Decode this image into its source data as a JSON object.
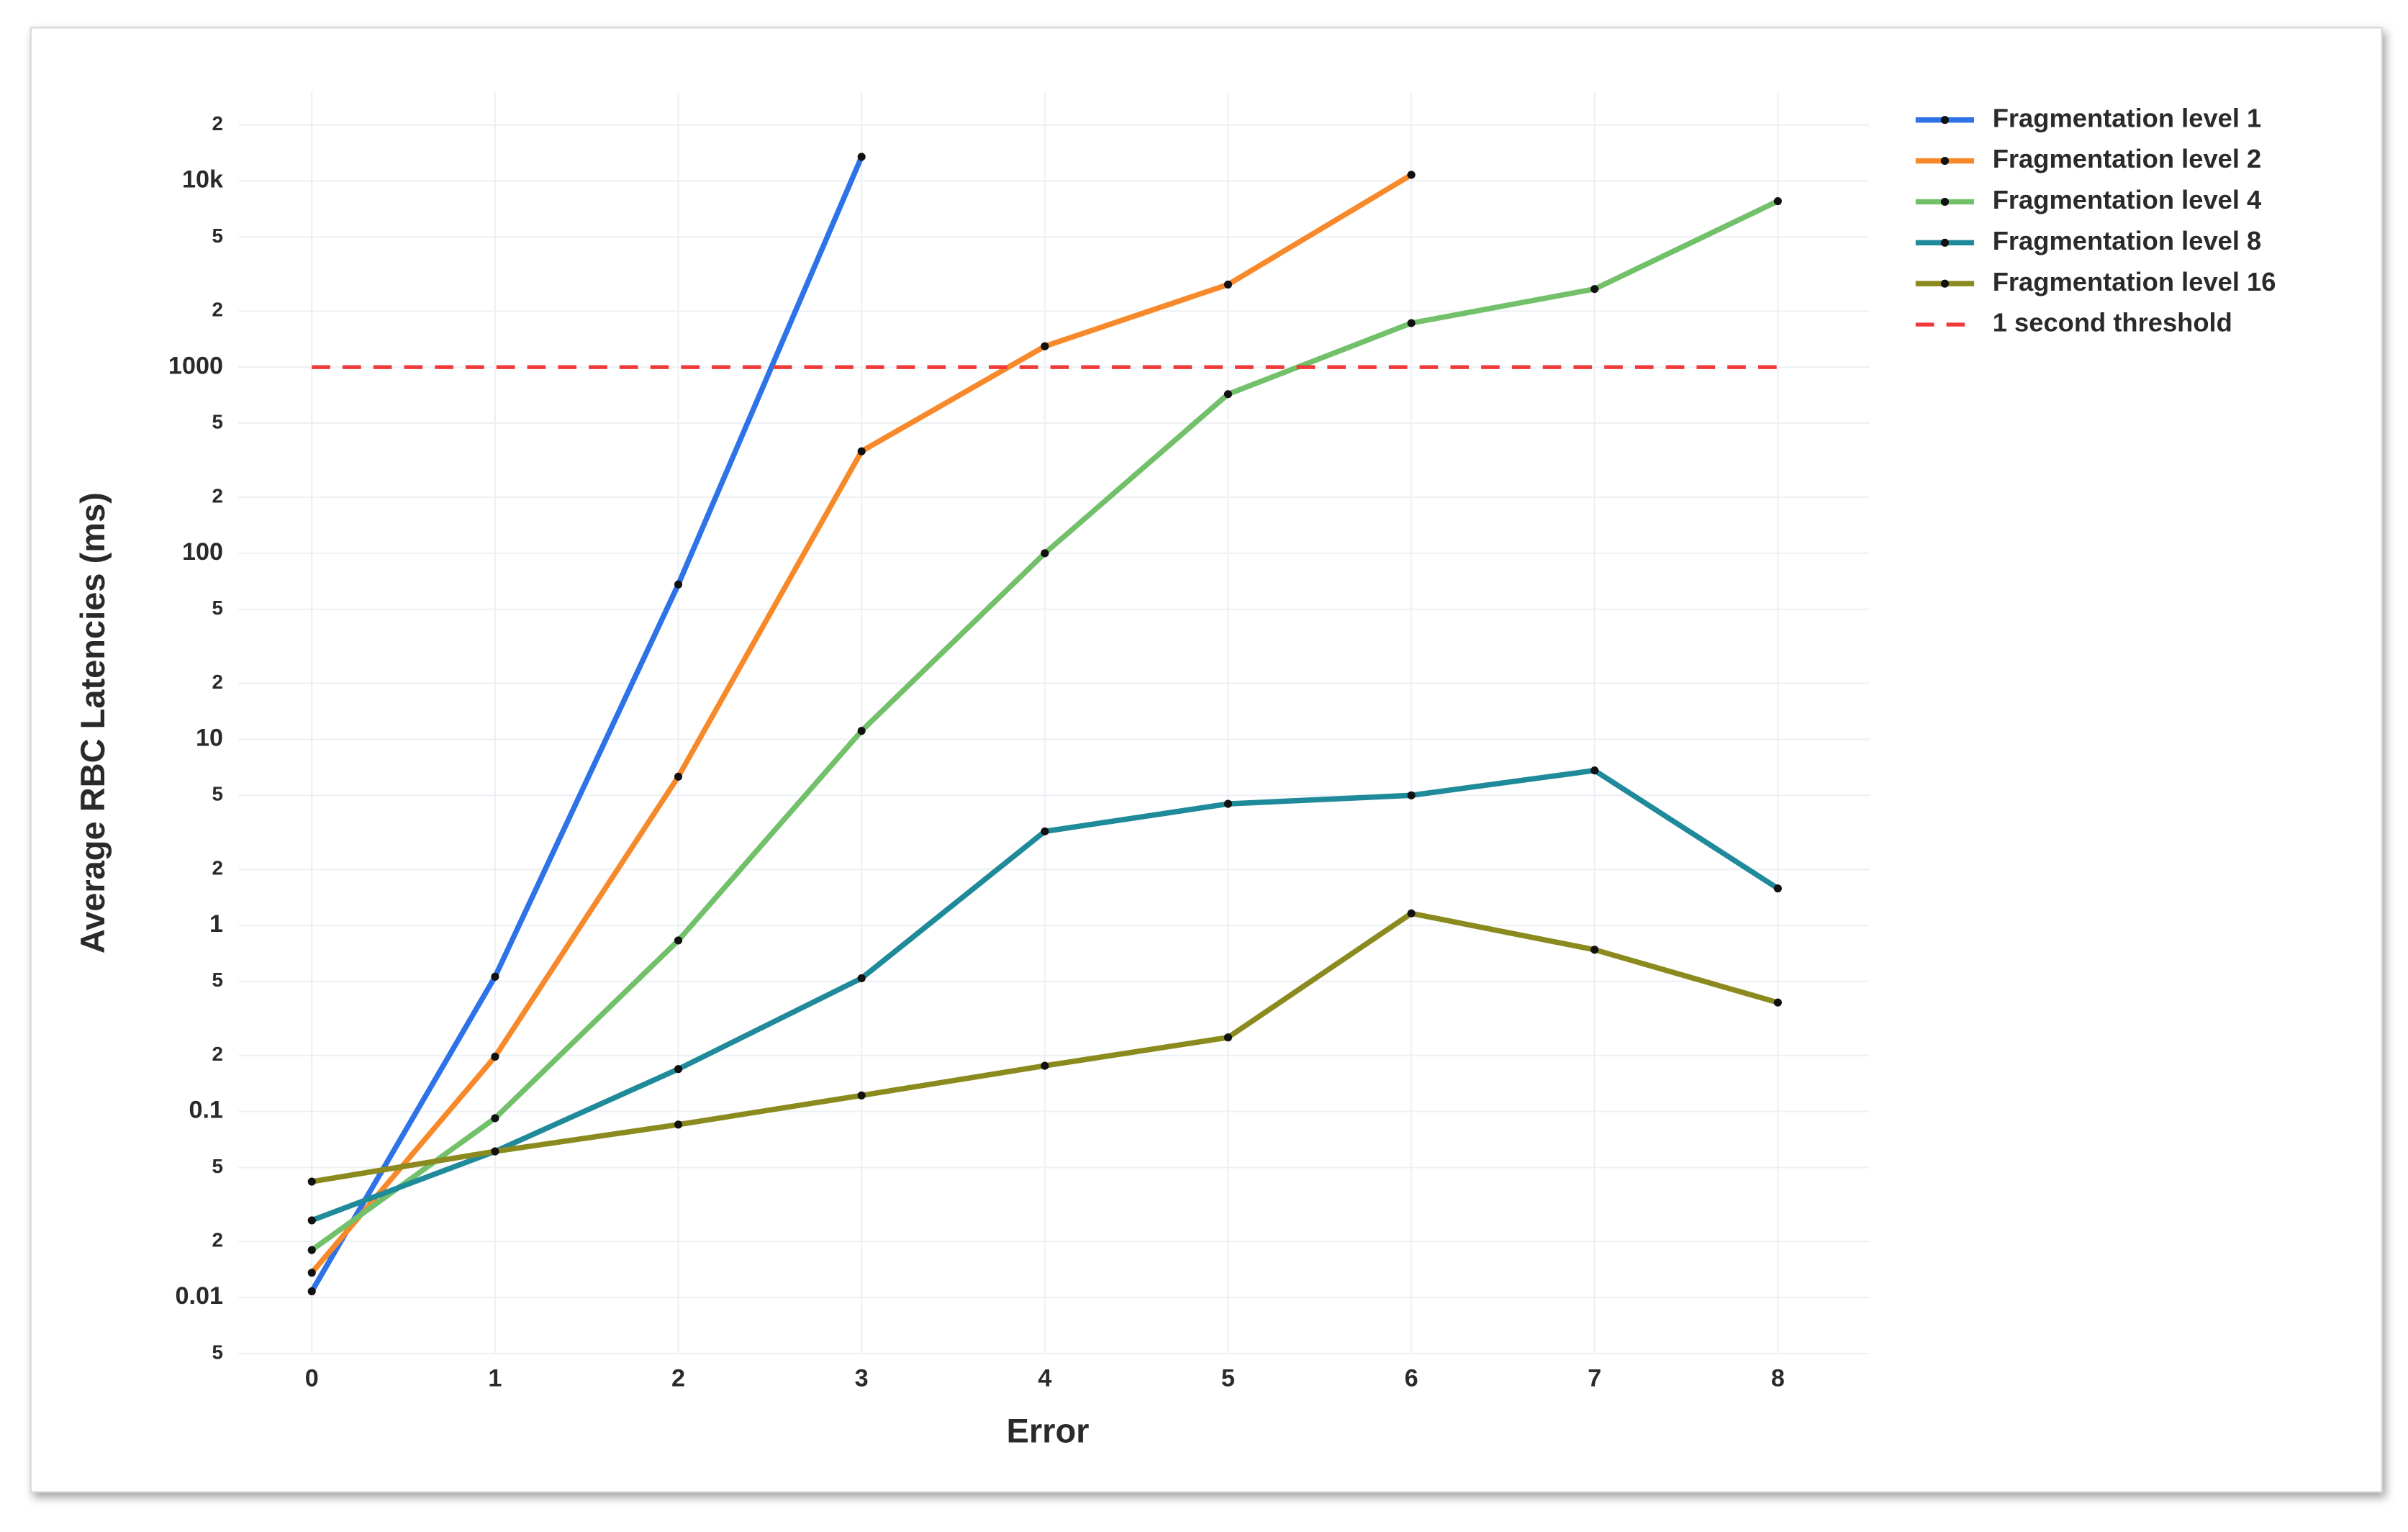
{
  "chart_data": {
    "type": "line",
    "xlabel": "Error",
    "ylabel": "Average RBC Latencies (ms)",
    "x": [
      0,
      1,
      2,
      3,
      4,
      5,
      6,
      7,
      8
    ],
    "xlim": [
      -0.4,
      8.5
    ],
    "xticks": [
      0,
      1,
      2,
      3,
      4,
      5,
      6,
      7,
      8
    ],
    "ylog": true,
    "ylim": [
      0.005,
      30000
    ],
    "yticks": [
      {
        "value": 0.005,
        "label": "5"
      },
      0.01,
      {
        "value": 0.02,
        "label": "2"
      },
      {
        "value": 0.05,
        "label": "5"
      },
      0.1,
      {
        "value": 0.2,
        "label": "2"
      },
      {
        "value": 0.5,
        "label": "5"
      },
      1,
      2,
      5,
      10,
      {
        "value": 20,
        "label": "2"
      },
      {
        "value": 50,
        "label": "5"
      },
      100,
      {
        "value": 200,
        "label": "2"
      },
      {
        "value": 500,
        "label": "5"
      },
      1000,
      {
        "value": 2000,
        "label": "2"
      },
      {
        "value": 5000,
        "label": "5"
      },
      {
        "value": 10000,
        "label": "10k"
      },
      {
        "value": 20000,
        "label": "2"
      }
    ],
    "grid": true,
    "legend": "outside-right-top",
    "series": [
      {
        "name": "Fragmentation level 1",
        "color": "#2e72e8",
        "values": [
          0.0108,
          0.53,
          68,
          13500,
          null,
          null,
          null,
          null,
          null
        ]
      },
      {
        "name": "Fragmentation level 2",
        "color": "#f7892a",
        "values": [
          0.0136,
          0.197,
          6.3,
          353,
          1295,
          2780,
          10800,
          null,
          null
        ]
      },
      {
        "name": "Fragmentation level 4",
        "color": "#72c16a",
        "values": [
          0.018,
          0.092,
          0.83,
          11.1,
          100,
          716,
          1725,
          2630,
          7800
        ]
      },
      {
        "name": "Fragmentation level 8",
        "color": "#1f8a9a",
        "values": [
          0.026,
          0.061,
          0.169,
          0.52,
          3.2,
          4.5,
          5.0,
          6.8,
          1.58
        ]
      },
      {
        "name": "Fragmentation level 16",
        "color": "#8b8a1e",
        "values": [
          0.042,
          0.061,
          0.085,
          0.122,
          0.176,
          0.25,
          1.16,
          0.74,
          0.385
        ]
      },
      {
        "name": "1 second threshold",
        "color": "#f03a3a",
        "dash": true,
        "markers": false,
        "values": [
          1000,
          1000,
          1000,
          1000,
          1000,
          1000,
          1000,
          1000,
          1000
        ]
      }
    ]
  }
}
